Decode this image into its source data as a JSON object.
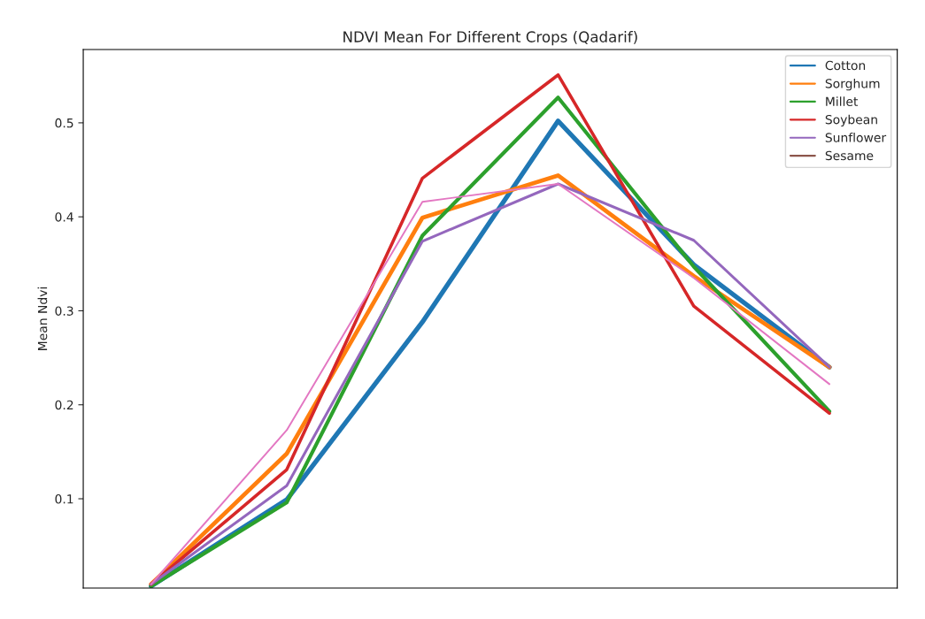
{
  "chart_data": {
    "type": "line",
    "title": "NDVI Mean For Different Crops (Qadarif)",
    "ylabel": "Mean Ndvi",
    "categories": [
      null,
      null,
      null,
      null,
      null,
      null
    ],
    "series": [
      {
        "name": "Cotton",
        "color": "#1f77b4",
        "values": [
          0.007,
          0.099,
          0.288,
          0.502,
          0.349,
          0.24
        ]
      },
      {
        "name": "Sorghum",
        "color": "#ff7f0e",
        "values": [
          0.009,
          0.148,
          0.399,
          0.444,
          0.337,
          0.24
        ]
      },
      {
        "name": "Millet",
        "color": "#2ca02c",
        "values": [
          0.007,
          0.096,
          0.38,
          0.527,
          0.347,
          0.193
        ]
      },
      {
        "name": "Soybean",
        "color": "#d62728",
        "values": [
          0.009,
          0.131,
          0.441,
          0.551,
          0.305,
          0.191
        ]
      },
      {
        "name": "Sunflower",
        "color": "#9467bd",
        "values": [
          0.009,
          0.114,
          0.374,
          0.435,
          0.375,
          0.24
        ]
      },
      {
        "name": "Sesame",
        "color": "#8c564b",
        "values": [
          null,
          null,
          null,
          null,
          null,
          null
        ]
      },
      {
        "color": "#e377c2",
        "values": [
          0.009,
          0.173,
          0.416,
          0.435,
          0.335,
          0.222
        ]
      }
    ],
    "ylim": [
      0.005,
      0.578
    ],
    "yticks": [
      0.1,
      0.2,
      0.3,
      0.4,
      0.5
    ],
    "tick_labels": "y",
    "grid": false,
    "legend": "top right",
    "marker": "none",
    "line_style": "solid"
  }
}
